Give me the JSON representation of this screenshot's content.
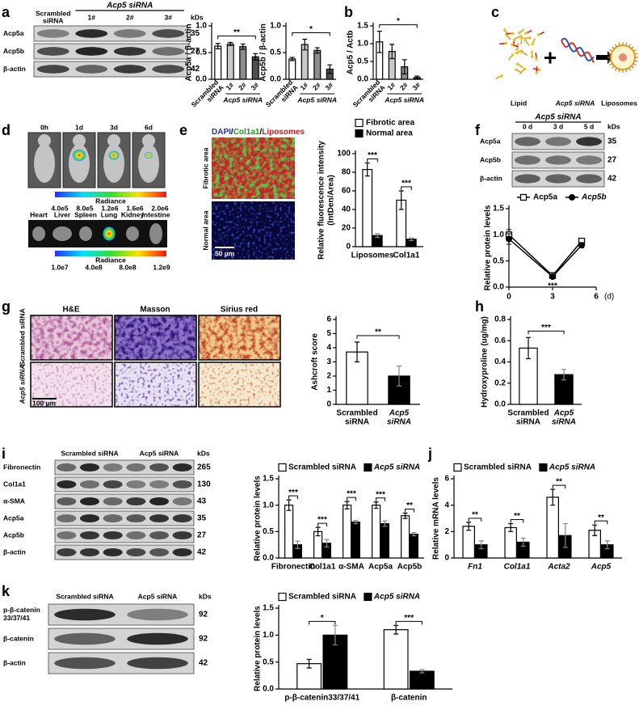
{
  "panel_labels": [
    "a",
    "b",
    "c",
    "d",
    "e",
    "f",
    "g",
    "h",
    "i",
    "j",
    "k"
  ],
  "blots": [
    {
      "lane_labels": [
        "Scrambled siRNA",
        "1#",
        "2#",
        "3#"
      ],
      "header": "Acp5 siRNA",
      "kd_title": "kDs",
      "rows": [
        {
          "name": "Acp5a",
          "kd": 35
        },
        {
          "name": "Acp5b",
          "kd": 27
        },
        {
          "name": "β-actin",
          "kd": 42
        }
      ]
    },
    {
      "lane_labels": [
        "0 d",
        "3 d",
        "5 d"
      ],
      "header": "Acp5 siRNA",
      "kd_title": "kDs",
      "rows": [
        {
          "name": "Acp5a",
          "kd": 35
        },
        {
          "name": "Acp5b",
          "kd": 27
        },
        {
          "name": "β-actin",
          "kd": 42
        }
      ]
    },
    {
      "lane_labels": [
        "Scrambled siRNA",
        "Acp5 siRNA"
      ],
      "kd_title": "kDs",
      "rows": [
        {
          "name": "Fibronectin",
          "kd": 265
        },
        {
          "name": "Col1a1",
          "kd": 130
        },
        {
          "name": "α-SMA",
          "kd": 43
        },
        {
          "name": "Acp5a",
          "kd": 35
        },
        {
          "name": "Acp5b",
          "kd": 27
        },
        {
          "name": "β-actin",
          "kd": 42
        }
      ]
    },
    {
      "lane_labels": [
        "Scrambled siRNA",
        "Acp5 siRNA"
      ],
      "kd_title": "kDs",
      "rows": [
        {
          "name": "p-β-catenin 33/37/41",
          "kd": 92
        },
        {
          "name": "β-catenin",
          "kd": 92
        },
        {
          "name": "β-actin",
          "kd": 42
        }
      ]
    }
  ],
  "diagram": {
    "items": [
      "Lipid",
      "Acp5 siRNA",
      "Liposomes"
    ]
  },
  "imaging": {
    "timepoints": [
      "0h",
      "1d",
      "3d",
      "6d"
    ],
    "scale_title": "Radiance",
    "scale_labels": [
      "4.0e5",
      "8.0e5",
      "1.2e6",
      "1.6e6",
      "2.0e6"
    ],
    "organs": [
      "Heart",
      "Liver",
      "Spleen",
      "Lung",
      "Kidney",
      "Intestine"
    ],
    "organ_scale_title": "Radiance",
    "organ_scale_labels": [
      "1.0e7",
      "4.0e8",
      "8.0e8",
      "1.2e9"
    ]
  },
  "fluorescence": {
    "stain": [
      "DAPI",
      "Col1a1",
      "Liposomes"
    ],
    "stain_colors": [
      "#2030d0",
      "#10a010",
      "#e01010"
    ],
    "stain_separator": "/",
    "rows": [
      "Fibrotic area",
      "Normal area"
    ],
    "scale_bar": "50 µm"
  },
  "histology": {
    "stains": [
      "H&E",
      "Masson",
      "Sirius red"
    ],
    "rows": [
      "Scrambled siRNA",
      "Acp5 siRNA"
    ],
    "scale_bar": "100 µm"
  },
  "chart_data": [
    {
      "type": "bar",
      "ylabel": "Acp5a / β-actin",
      "categories": [
        "Scrambled siRNA",
        "1#",
        "2#",
        "3#"
      ],
      "group_label": "Acp5 siRNA",
      "series": [
        {
          "colors": [
            "#ffffff",
            "#c8c8c8",
            "#8c8c8c",
            "#505050"
          ],
          "values": [
            0.62,
            0.66,
            0.61,
            0.42
          ],
          "errors": [
            0.05,
            0.03,
            0.05,
            0.06
          ]
        }
      ],
      "ylim": [
        0,
        1.0
      ],
      "yticks": [
        {
          "value": 0,
          "label": "0.0"
        },
        {
          "value": 0.5,
          "label": "0.5"
        },
        {
          "value": 1.0,
          "label": "1.0"
        }
      ],
      "comparisons": [
        {
          "label": "**",
          "between": [
            "Scrambled siRNA",
            "3#"
          ]
        }
      ]
    },
    {
      "type": "bar",
      "ylabel": "Acp5b / β-actin",
      "categories": [
        "Scrambled siRNA",
        "1#",
        "2#",
        "3#"
      ],
      "group_label": "Acp5 siRNA",
      "series": [
        {
          "colors": [
            "#ffffff",
            "#c8c8c8",
            "#8c8c8c",
            "#505050"
          ],
          "values": [
            0.38,
            0.65,
            0.54,
            0.19
          ],
          "errors": [
            0.03,
            0.1,
            0.05,
            0.08
          ]
        }
      ],
      "ylim": [
        0,
        1.0
      ],
      "yticks": [
        {
          "value": 0,
          "label": "0.0"
        },
        {
          "value": 0.5,
          "label": "0.5"
        },
        {
          "value": 1.0,
          "label": "1.0"
        }
      ],
      "comparisons": [
        {
          "label": "*",
          "between": [
            "Scrambled siRNA",
            "3#"
          ]
        }
      ]
    },
    {
      "type": "bar",
      "ylabel": "Acp5 / Actb",
      "categories": [
        "Scrambled siRNA",
        "1#",
        "2#",
        "3#"
      ],
      "group_label": "Acp5 siRNA",
      "series": [
        {
          "colors": [
            "#ffffff",
            "#c8c8c8",
            "#8c8c8c",
            "#505050"
          ],
          "values": [
            1.05,
            0.78,
            0.35,
            0.05
          ],
          "errors": [
            0.3,
            0.2,
            0.2,
            0.04
          ]
        }
      ],
      "ylim": [
        0,
        1.5
      ],
      "yticks": [
        {
          "value": 0,
          "label": "0.0"
        },
        {
          "value": 0.5,
          "label": "0.5"
        },
        {
          "value": 1.0,
          "label": "1.0"
        },
        {
          "value": 1.5,
          "label": "1.5"
        }
      ],
      "comparisons": [
        {
          "label": "*",
          "between": [
            "Scrambled siRNA",
            "3#"
          ]
        }
      ]
    },
    {
      "type": "bar",
      "ylabel": [
        "Relative fluorescence intensity",
        "(IntDen/Area)"
      ],
      "categories": [
        "Liposomes",
        "Col1a1"
      ],
      "legend": "top",
      "series": [
        {
          "name": "Fibrotic area",
          "color": "#ffffff",
          "values": [
            83,
            50
          ],
          "errors": [
            7,
            10
          ]
        },
        {
          "name": "Normal area",
          "color": "#000000",
          "values": [
            12,
            8
          ],
          "errors": [
            2,
            1.5
          ]
        }
      ],
      "ylim": [
        0,
        100
      ],
      "yticks": [
        0,
        20,
        40,
        60,
        80,
        100
      ],
      "comparisons": [
        {
          "label": "***",
          "category": "Liposomes"
        },
        {
          "label": "***",
          "category": "Col1a1"
        }
      ]
    },
    {
      "type": "line",
      "ylabel": "Relative protein levels",
      "x": [
        0,
        3,
        5
      ],
      "xlim": [
        0,
        6
      ],
      "xticks": [
        0,
        3,
        6
      ],
      "xlabel": "(d)",
      "legend": "top",
      "series": [
        {
          "name": "Acp5a",
          "color": "#000000",
          "marker": "square-open",
          "values": [
            1.0,
            0.22,
            0.88
          ],
          "errors": [
            0.1,
            0.03,
            0.05
          ]
        },
        {
          "name": "Acp5b",
          "color": "#000000",
          "marker": "circle",
          "values": [
            0.92,
            0.2,
            0.8
          ],
          "errors": [
            0.1,
            0.03,
            0.05
          ]
        }
      ],
      "ylim": [
        0,
        1.5
      ],
      "yticks": [
        {
          "value": 0,
          "label": "0.0"
        },
        {
          "value": 0.5,
          "label": "0.5"
        },
        {
          "value": 1.0,
          "label": "1.0"
        },
        {
          "value": 1.5,
          "label": "1.5"
        }
      ],
      "annotations": [
        {
          "label": "***",
          "x": 3
        }
      ]
    },
    {
      "type": "bar",
      "ylabel": "Ashcroft score",
      "categories": [
        "Scrambled siRNA",
        "Acp5 siRNA"
      ],
      "series": [
        {
          "colors": [
            "#ffffff",
            "#000000"
          ],
          "values": [
            3.7,
            2.0
          ],
          "errors": [
            0.7,
            0.7
          ]
        }
      ],
      "ylim": [
        0,
        6
      ],
      "yticks": [
        0,
        1,
        2,
        3,
        4,
        5,
        6
      ],
      "comparisons": [
        {
          "label": "**",
          "between": [
            "Scrambled siRNA",
            "Acp5 siRNA"
          ]
        }
      ]
    },
    {
      "type": "bar",
      "ylabel": "Hydroxyproline (ug/mg)",
      "categories": [
        "Scrambled siRNA",
        "Acp5 siRNA"
      ],
      "series": [
        {
          "colors": [
            "#ffffff",
            "#000000"
          ],
          "values": [
            0.53,
            0.28
          ],
          "errors": [
            0.1,
            0.05
          ]
        }
      ],
      "ylim": [
        0,
        0.8
      ],
      "yticks": [
        {
          "value": 0,
          "label": "0.0"
        },
        {
          "value": 0.2,
          "label": "0.2"
        },
        {
          "value": 0.4,
          "label": "0.4"
        },
        {
          "value": 0.6,
          "label": "0.6"
        },
        {
          "value": 0.8,
          "label": "0.8"
        }
      ],
      "comparisons": [
        {
          "label": "***",
          "between": [
            "Scrambled siRNA",
            "Acp5 siRNA"
          ]
        }
      ]
    },
    {
      "type": "bar",
      "ylabel": "Relative protein levels",
      "categories": [
        "Fibronectin",
        "Col1a1",
        "α-SMA",
        "Acp5a",
        "Acp5b"
      ],
      "legend": "top",
      "series": [
        {
          "name": "Scrambled siRNA",
          "color": "#ffffff",
          "values": [
            1.0,
            0.5,
            1.0,
            1.0,
            0.8
          ],
          "errors": [
            0.1,
            0.08,
            0.07,
            0.06,
            0.05
          ]
        },
        {
          "name": "Acp5 siRNA",
          "color": "#000000",
          "values": [
            0.25,
            0.28,
            0.68,
            0.65,
            0.45
          ],
          "errors": [
            0.07,
            0.07,
            0.03,
            0.05,
            0.03
          ]
        }
      ],
      "ylim": [
        0,
        1.5
      ],
      "yticks": [
        {
          "value": 0,
          "label": "0.0"
        },
        {
          "value": 0.5,
          "label": "0.5"
        },
        {
          "value": 1.0,
          "label": "1.0"
        },
        {
          "value": 1.5,
          "label": "1.5"
        }
      ],
      "comparisons": [
        {
          "label": "***",
          "category": "Fibronectin"
        },
        {
          "label": "***",
          "category": "Col1a1"
        },
        {
          "label": "***",
          "category": "α-SMA"
        },
        {
          "label": "***",
          "category": "Acp5a"
        },
        {
          "label": "**",
          "category": "Acp5b"
        }
      ]
    },
    {
      "type": "bar",
      "ylabel": "Relative mRNA levels",
      "categories": [
        "Fn1",
        "Col1a1",
        "Acta2",
        "Acp5"
      ],
      "legend": "top",
      "series": [
        {
          "name": "Scrambled siRNA",
          "color": "#ffffff",
          "values": [
            2.4,
            2.3,
            4.6,
            2.1
          ],
          "errors": [
            0.3,
            0.3,
            0.6,
            0.4
          ]
        },
        {
          "name": "Acp5 siRNA",
          "color": "#000000",
          "values": [
            1.0,
            1.2,
            1.7,
            1.0
          ],
          "errors": [
            0.3,
            0.3,
            0.9,
            0.3
          ]
        }
      ],
      "ylim": [
        0,
        6
      ],
      "yticks": [
        0,
        2,
        4,
        6
      ],
      "comparisons": [
        {
          "label": "**",
          "category": "Fn1"
        },
        {
          "label": "**",
          "category": "Col1a1"
        },
        {
          "label": "**",
          "category": "Acta2"
        },
        {
          "label": "**",
          "category": "Acp5"
        }
      ]
    },
    {
      "type": "bar",
      "ylabel": "Relative protein levels",
      "categories": [
        "p-β-catenin33/37/41",
        "β-catenin"
      ],
      "legend": "top",
      "series": [
        {
          "name": "Scrambled siRNA",
          "color": "#ffffff",
          "values": [
            0.47,
            1.1
          ],
          "errors": [
            0.08,
            0.08
          ]
        },
        {
          "name": "Acp5 siRNA",
          "color": "#000000",
          "values": [
            1.0,
            0.33
          ],
          "errors": [
            0.18,
            0.03
          ]
        }
      ],
      "ylim": [
        0,
        1.5
      ],
      "yticks": [
        {
          "value": 0,
          "label": "0.0"
        },
        {
          "value": 0.5,
          "label": "0.5"
        },
        {
          "value": 1.0,
          "label": "1.0"
        },
        {
          "value": 1.5,
          "label": "1.5"
        }
      ],
      "comparisons": [
        {
          "label": "*",
          "category": "p-β-catenin33/37/41"
        },
        {
          "label": "***",
          "category": "β-catenin"
        }
      ]
    }
  ]
}
